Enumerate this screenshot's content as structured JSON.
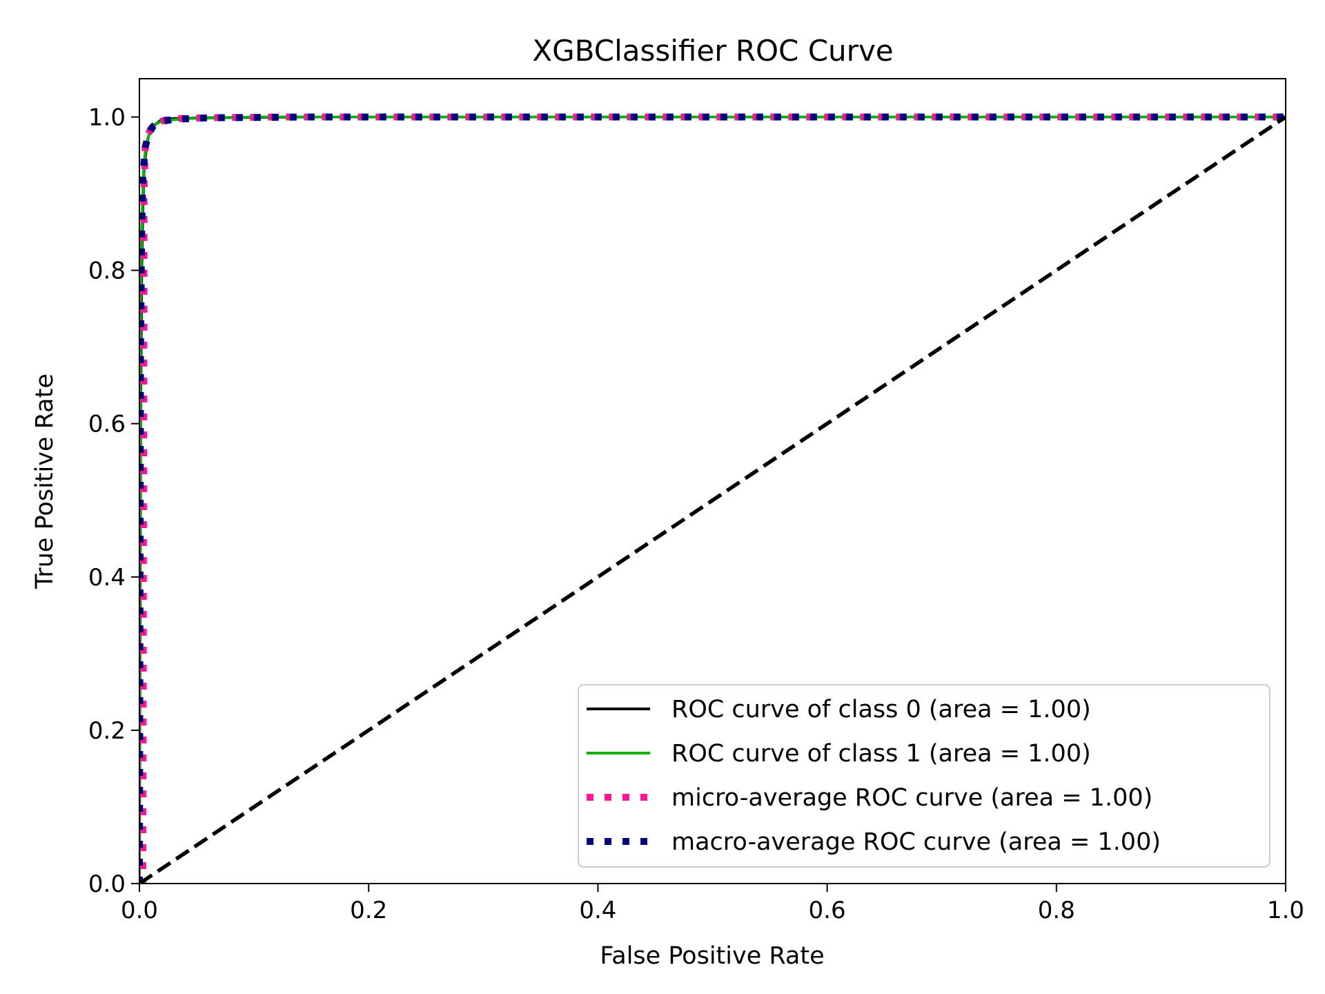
{
  "chart_data": {
    "type": "line",
    "title": "XGBClassifier ROC Curve",
    "xlabel": "False Positive Rate",
    "ylabel": "True Positive Rate",
    "xlim": [
      0.0,
      1.0
    ],
    "ylim": [
      0.0,
      1.05
    ],
    "x_ticks": [
      "0.0",
      "0.2",
      "0.4",
      "0.6",
      "0.8",
      "1.0"
    ],
    "y_ticks": [
      "0.0",
      "0.2",
      "0.4",
      "0.6",
      "0.8",
      "1.0"
    ],
    "grid": false,
    "legend_position": "lower-right",
    "series": [
      {
        "name": "ROC curve of class 0 (area = 1.00)",
        "color": "#000000",
        "style": "solid",
        "x": [
          0.0,
          0.001,
          0.002,
          0.003,
          0.004,
          0.006,
          0.008,
          0.012,
          0.018,
          0.03,
          0.06,
          0.15,
          0.3,
          0.6,
          1.0
        ],
        "y": [
          0.0,
          0.6,
          0.8,
          0.88,
          0.93,
          0.96,
          0.975,
          0.988,
          0.995,
          0.998,
          0.999,
          1.0,
          1.0,
          1.0,
          1.0
        ]
      },
      {
        "name": "ROC curve of class 1 (area = 1.00)",
        "color": "#00b400",
        "style": "solid",
        "x": [
          0.0,
          0.0005,
          0.001,
          0.002,
          0.003,
          0.004,
          0.006,
          0.009,
          0.013,
          0.02,
          0.04,
          0.1,
          0.3,
          0.6,
          1.0
        ],
        "y": [
          0.0,
          0.5,
          0.75,
          0.85,
          0.9,
          0.94,
          0.965,
          0.98,
          0.99,
          0.995,
          0.998,
          1.0,
          1.0,
          1.0,
          1.0
        ]
      },
      {
        "name": "micro-average ROC curve (area = 1.00)",
        "color": "#ff1493",
        "style": "dotted",
        "x": [
          0.0,
          0.003,
          0.004,
          0.005,
          0.007,
          0.01,
          0.015,
          0.022,
          0.035,
          0.06,
          0.12,
          0.3,
          0.6,
          1.0
        ],
        "y": [
          0.0,
          0.0,
          0.9,
          0.96,
          0.975,
          0.985,
          0.992,
          0.996,
          0.998,
          0.999,
          1.0,
          1.0,
          1.0,
          1.0
        ]
      },
      {
        "name": "macro-average ROC curve (area = 1.00)",
        "color": "#000080",
        "style": "dotted",
        "x": [
          0.0,
          0.001,
          0.002,
          0.003,
          0.005,
          0.008,
          0.012,
          0.018,
          0.03,
          0.06,
          0.15,
          0.4,
          0.7,
          1.0
        ],
        "y": [
          0.0,
          0.7,
          0.85,
          0.92,
          0.96,
          0.978,
          0.988,
          0.994,
          0.997,
          0.999,
          1.0,
          1.0,
          1.0,
          1.0
        ]
      },
      {
        "name": "",
        "color": "#000000",
        "style": "dashed",
        "x": [
          0.0,
          1.0
        ],
        "y": [
          0.0,
          1.0
        ]
      }
    ]
  }
}
